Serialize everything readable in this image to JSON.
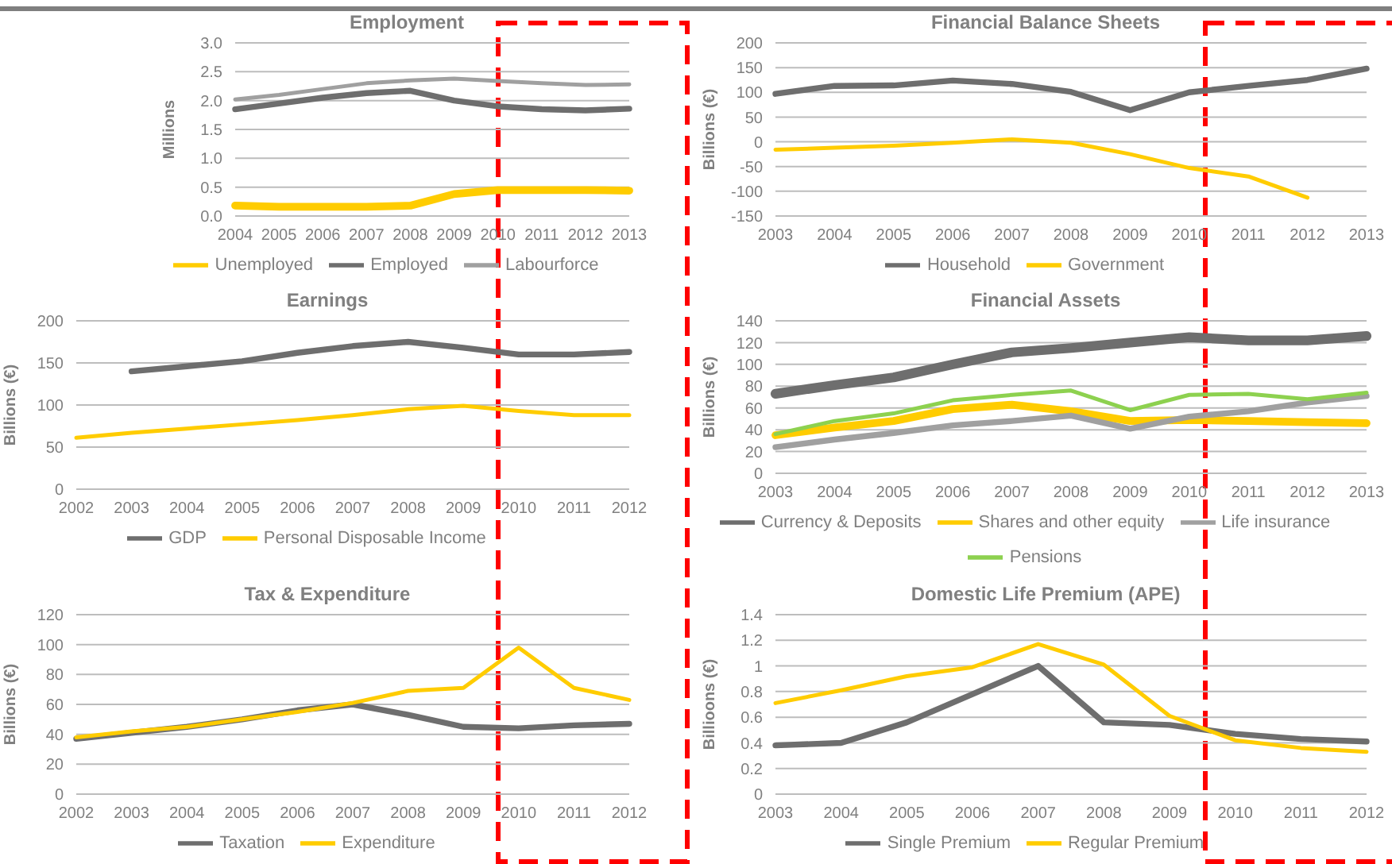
{
  "chart_data": [
    {
      "type": "line",
      "title": "Employment",
      "ylabel": "Millions",
      "categories": [
        "2004",
        "2005",
        "2006",
        "2007",
        "2008",
        "2009",
        "2010",
        "2011",
        "2012",
        "2013"
      ],
      "ylim": [
        0,
        3
      ],
      "yticks": [
        {
          "value": 0,
          "label": "0.0"
        },
        0.5,
        {
          "value": 1,
          "label": "1.0"
        },
        1.5,
        {
          "value": 2,
          "label": "2.0"
        },
        2.5,
        {
          "value": 3,
          "label": "3.0"
        }
      ],
      "grid": "y",
      "legend": "bottom",
      "marker": "none",
      "line_style": "solid",
      "series": [
        {
          "name": "Unemployed",
          "color": "#ffcc00",
          "values": [
            0.18,
            0.16,
            0.16,
            0.16,
            0.18,
            0.38,
            0.45,
            0.45,
            0.45,
            0.44
          ]
        },
        {
          "name": "Employed",
          "color": "#6e6e6e",
          "values": [
            1.85,
            1.95,
            2.05,
            2.13,
            2.17,
            2.0,
            1.9,
            1.85,
            1.83,
            1.86
          ]
        },
        {
          "name": "Labourforce",
          "color": "#a0a0a0",
          "values": [
            2.02,
            2.1,
            2.2,
            2.3,
            2.35,
            2.38,
            2.34,
            2.3,
            2.27,
            2.28
          ]
        }
      ]
    },
    {
      "type": "line",
      "title": "Financial Balance Sheets",
      "ylabel": "Billions (€)",
      "categories": [
        "2003",
        "2004",
        "2005",
        "2006",
        "2007",
        "2008",
        "2009",
        "2010",
        "2011",
        "2012",
        "2013"
      ],
      "ylim": [
        -150,
        200
      ],
      "yticks": [
        -150,
        -100,
        -50,
        0,
        50,
        100,
        150,
        200
      ],
      "grid": "y",
      "legend": "bottom",
      "marker": "none",
      "line_style": "solid",
      "series": [
        {
          "name": "Household",
          "color": "#6e6e6e",
          "values": [
            97,
            113,
            114,
            124,
            117,
            101,
            64,
            100,
            113,
            125,
            148
          ]
        },
        {
          "name": "Government",
          "color": "#ffcc00",
          "values": [
            -16,
            -12,
            -8,
            -2,
            5,
            -2,
            -25,
            -53,
            -70,
            -113,
            null
          ]
        }
      ]
    },
    {
      "type": "line",
      "title": "Earnings",
      "ylabel": "Billions (€)",
      "categories": [
        "2002",
        "2003",
        "2004",
        "2005",
        "2006",
        "2007",
        "2008",
        "2009",
        "2010",
        "2011",
        "2012"
      ],
      "ylim": [
        0,
        200
      ],
      "yticks": [
        0,
        50,
        100,
        150,
        200
      ],
      "grid": "y",
      "legend": "bottom",
      "marker": "none",
      "line_style": "solid",
      "series": [
        {
          "name": "GDP",
          "color": "#6e6e6e",
          "values": [
            null,
            140,
            146,
            152,
            162,
            170,
            175,
            168,
            160,
            160,
            163
          ]
        },
        {
          "name": "Personal Disposable Income",
          "color": "#ffcc00",
          "values": [
            61,
            67,
            72,
            77,
            82,
            88,
            95,
            99,
            93,
            88,
            88
          ]
        }
      ]
    },
    {
      "type": "line",
      "title": "Financial Assets",
      "ylabel": "Billions (€)",
      "categories": [
        "2003",
        "2004",
        "2005",
        "2006",
        "2007",
        "2008",
        "2009",
        "2010",
        "2011",
        "2012",
        "2013"
      ],
      "ylim": [
        0,
        140
      ],
      "yticks": [
        0,
        20,
        40,
        60,
        80,
        100,
        120,
        140
      ],
      "grid": "y",
      "legend": "bottom",
      "marker": "none",
      "line_style": "solid",
      "series": [
        {
          "name": "Currency & Deposits",
          "color": "#6e6e6e",
          "values": [
            73,
            81,
            88,
            100,
            111,
            115,
            120,
            125,
            122,
            122,
            126
          ]
        },
        {
          "name": "Shares and other equity",
          "color": "#ffcc00",
          "values": [
            35,
            42,
            48,
            59,
            63,
            57,
            48,
            49,
            48,
            47,
            46
          ]
        },
        {
          "name": "Life insurance",
          "color": "#a0a0a0",
          "values": [
            24,
            31,
            37,
            44,
            48,
            53,
            41,
            52,
            57,
            65,
            71
          ]
        },
        {
          "name": "Pensions",
          "color": "#8dd14f",
          "values": [
            36,
            48,
            55,
            67,
            72,
            76,
            58,
            72,
            73,
            68,
            74
          ]
        }
      ]
    },
    {
      "type": "line",
      "title": "Tax & Expenditure",
      "ylabel": "Billions (€)",
      "categories": [
        "2002",
        "2003",
        "2004",
        "2005",
        "2006",
        "2007",
        "2008",
        "2009",
        "2010",
        "2011",
        "2012"
      ],
      "ylim": [
        0,
        120
      ],
      "yticks": [
        0,
        20,
        40,
        60,
        80,
        100,
        120
      ],
      "grid": "y",
      "legend": "bottom",
      "marker": "none",
      "line_style": "solid",
      "series": [
        {
          "name": "Taxation",
          "color": "#6e6e6e",
          "values": [
            37,
            41,
            45,
            50,
            56,
            60,
            53,
            45,
            44,
            46,
            47
          ]
        },
        {
          "name": "Expenditure",
          "color": "#ffcc00",
          "values": [
            38,
            42,
            45,
            50,
            55,
            61,
            69,
            71,
            98,
            71,
            63
          ]
        }
      ]
    },
    {
      "type": "line",
      "title": "Domestic Life Premium (APE)",
      "ylabel": "Billioons (€)",
      "categories": [
        "2003",
        "2004",
        "2005",
        "2006",
        "2007",
        "2008",
        "2009",
        "2010",
        "2011",
        "2012"
      ],
      "ylim": [
        0,
        1.4
      ],
      "yticks": [
        0,
        0.2,
        0.4,
        0.6,
        0.8,
        1,
        1.2,
        1.4
      ],
      "grid": "y",
      "legend": "bottom",
      "marker": "none",
      "line_style": "solid",
      "series": [
        {
          "name": "Single Premium",
          "color": "#6e6e6e",
          "values": [
            0.38,
            0.4,
            0.56,
            0.78,
            1.0,
            0.56,
            0.54,
            0.47,
            0.43,
            0.41
          ]
        },
        {
          "name": "Regular Premium",
          "color": "#ffcc00",
          "values": [
            0.71,
            0.81,
            0.92,
            0.99,
            1.17,
            1.01,
            0.61,
            0.42,
            0.36,
            0.33
          ]
        }
      ]
    }
  ]
}
